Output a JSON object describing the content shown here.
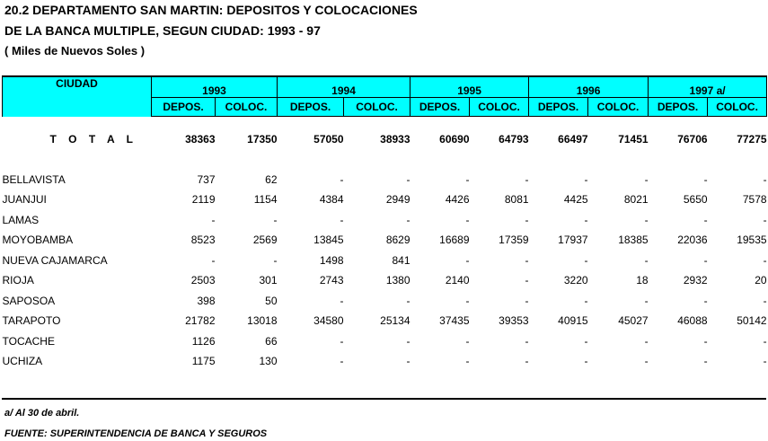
{
  "title": {
    "line1": "20.2  DEPARTAMENTO  SAN  MARTIN:  DEPOSITOS Y COLOCACIONES",
    "line2": "DE LA BANCA MULTIPLE, SEGUN CIUDAD: 1993 - 97",
    "units": "( Miles de Nuevos Soles )"
  },
  "table": {
    "city_header": "CIUDAD",
    "years": [
      "1993",
      "1994",
      "1995",
      "1996",
      "1997 a/"
    ],
    "sub_headers": [
      "DEPOS.",
      "COLOC.",
      "DEPOS.",
      "COLOC.",
      "DEPOS.",
      "COLOC.",
      "DEPOS.",
      "COLOC.",
      "DEPOS.",
      "COLOC."
    ],
    "total": {
      "label": "T O T A L",
      "values": [
        "38363",
        "17350",
        "57050",
        "38933",
        "60690",
        "64793",
        "66497",
        "71451",
        "76706",
        "77275"
      ]
    },
    "rows": [
      {
        "city": "BELLAVISTA",
        "values": [
          "737",
          "62",
          "-",
          "-",
          "-",
          "-",
          "-",
          "-",
          "-",
          "-"
        ]
      },
      {
        "city": "JUANJUI",
        "values": [
          "2119",
          "1154",
          "4384",
          "2949",
          "4426",
          "8081",
          "4425",
          "8021",
          "5650",
          "7578"
        ]
      },
      {
        "city": "LAMAS",
        "values": [
          "-",
          "-",
          "-",
          "-",
          "-",
          "-",
          "-",
          "-",
          "-",
          "-"
        ]
      },
      {
        "city": "MOYOBAMBA",
        "values": [
          "8523",
          "2569",
          "13845",
          "8629",
          "16689",
          "17359",
          "17937",
          "18385",
          "22036",
          "19535"
        ]
      },
      {
        "city": "NUEVA CAJAMARCA",
        "values": [
          "-",
          "-",
          "1498",
          "841",
          "-",
          "-",
          "-",
          "-",
          "-",
          "-"
        ]
      },
      {
        "city": "RIOJA",
        "values": [
          "2503",
          "301",
          "2743",
          "1380",
          "2140",
          "-",
          "3220",
          "18",
          "2932",
          "20"
        ]
      },
      {
        "city": "SAPOSOA",
        "values": [
          "398",
          "50",
          "-",
          "-",
          "-",
          "-",
          "-",
          "-",
          "-",
          "-"
        ]
      },
      {
        "city": "TARAPOTO",
        "values": [
          "21782",
          "13018",
          "34580",
          "25134",
          "37435",
          "39353",
          "40915",
          "45027",
          "46088",
          "50142"
        ]
      },
      {
        "city": "TOCACHE",
        "values": [
          "1126",
          "66",
          "-",
          "-",
          "-",
          "-",
          "-",
          "-",
          "-",
          "-"
        ]
      },
      {
        "city": "UCHIZA",
        "values": [
          "1175",
          "130",
          "-",
          "-",
          "-",
          "-",
          "-",
          "-",
          "-",
          "-"
        ]
      }
    ]
  },
  "footnotes": {
    "note": "a/ Al 30  de abril.",
    "source": "FUENTE: SUPERINTENDENCIA DE BANCA Y SEGUROS"
  }
}
